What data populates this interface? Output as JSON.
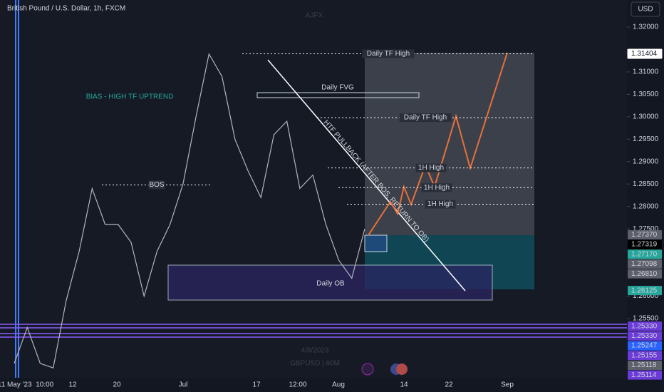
{
  "header": {
    "symbol": "British Pound / U.S. Dollar, 1h, FXCM",
    "currency": "USD",
    "watermark": "AJFX",
    "date_stamp": "4/8/2023",
    "ticker_stamp": "GBPUSD | 60M"
  },
  "bias": "BIAS - HIGH TF UPTREND",
  "zones": {
    "fvg": "Daily FVG",
    "ob": "Daily OB"
  },
  "trendline_label": "HTF PULLBACK (AFTER BOS, RETURN TO OB)",
  "levels": [
    {
      "label": "Daily TF High",
      "price": 1.31404
    },
    {
      "label": "Daily TF High",
      "price": 1.2998
    },
    {
      "label": "1H High",
      "price": 1.2886
    },
    {
      "label": "1H High",
      "price": 1.2842
    },
    {
      "label": "1H High",
      "price": 1.2805
    },
    {
      "label": "BOS",
      "price": 1.2848
    }
  ],
  "price_axis": {
    "ticks": [
      {
        "value": 1.32,
        "label": "1.32000"
      },
      {
        "value": 1.31,
        "label": "1.31000"
      },
      {
        "value": 1.305,
        "label": "1.30500"
      },
      {
        "value": 1.3,
        "label": "1.30000"
      },
      {
        "value": 1.295,
        "label": "1.29500"
      },
      {
        "value": 1.29,
        "label": "1.29000"
      },
      {
        "value": 1.285,
        "label": "1.28500"
      },
      {
        "value": 1.28,
        "label": "1.28000"
      },
      {
        "value": 1.275,
        "label": "1.27500"
      },
      {
        "value": 1.26,
        "label": "1.26000"
      },
      {
        "value": 1.255,
        "label": "1.25500"
      }
    ],
    "tags": [
      {
        "value": 1.31404,
        "label": "1.31404"
      },
      {
        "value": 1.2737,
        "label": "1.27370"
      },
      {
        "value": 1.27319,
        "label": "1.27319"
      },
      {
        "value": 1.2717,
        "label": "1.27170"
      },
      {
        "value": 1.27098,
        "label": "1.27098"
      },
      {
        "value": 1.2681,
        "label": "1.26810"
      },
      {
        "value": 1.26125,
        "label": "1.26125"
      },
      {
        "value": 1.2533,
        "label": "1.25330"
      },
      {
        "value": 1.2533,
        "label": "1.25330"
      },
      {
        "value": 1.25247,
        "label": "1.25247"
      },
      {
        "value": 1.25155,
        "label": "1.25155"
      },
      {
        "value": 1.25118,
        "label": "1.25118"
      },
      {
        "value": 1.25114,
        "label": "1.25114"
      }
    ]
  },
  "time_axis": [
    "11 May '23  10:00",
    "12",
    "20",
    "Jul",
    "17",
    "12:00",
    "Aug",
    "14",
    "22",
    "Sep"
  ],
  "price_path": [
    1.245,
    1.253,
    1.245,
    1.244,
    1.259,
    1.27,
    1.284,
    1.276,
    1.276,
    1.272,
    1.26,
    1.27,
    1.276,
    1.285,
    1.3,
    1.314,
    1.309,
    1.295,
    1.288,
    1.282,
    1.296,
    1.299,
    1.284,
    1.287,
    1.276,
    1.268,
    1.264,
    1.275
  ]
}
